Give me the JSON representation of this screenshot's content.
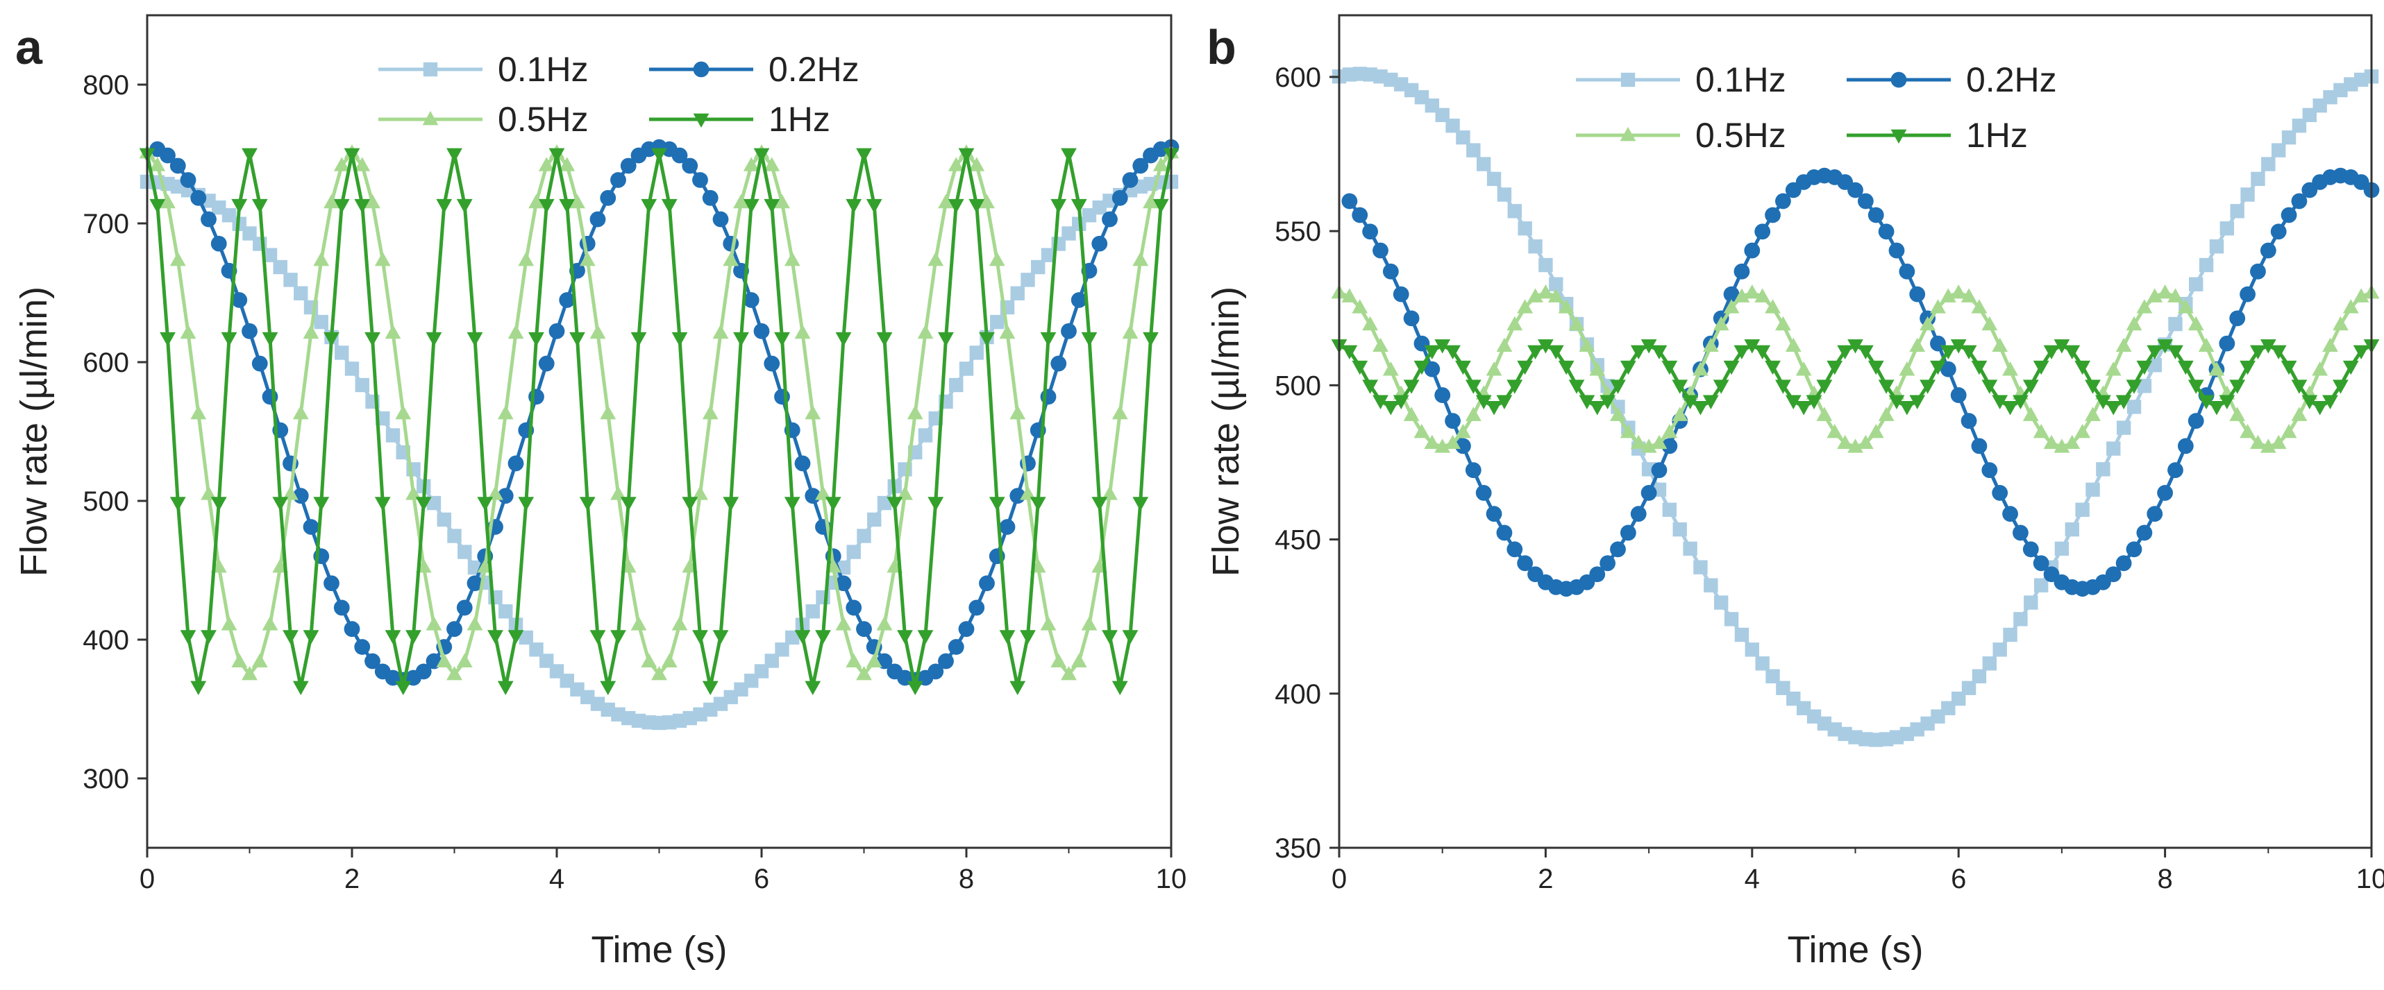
{
  "chart_data": [
    {
      "panel": "a",
      "type": "line",
      "xlabel": "Time (s)",
      "ylabel": "Flow rate (µl/min)",
      "xlim": [
        0,
        10
      ],
      "ylim": [
        250,
        850
      ],
      "xticks": [
        0,
        2,
        4,
        6,
        8,
        10
      ],
      "yticks": [
        300,
        400,
        500,
        600,
        700,
        800
      ],
      "grid": false,
      "legend_position": "top-center",
      "series": [
        {
          "name": "0.1Hz",
          "color": "#a9cce3",
          "marker": "square",
          "frequency_hz": 0.1,
          "amplitude": 195,
          "offset": 535,
          "phase_peak_s": 0.0,
          "t_start": 0.0,
          "t_end": 10.0
        },
        {
          "name": "0.2Hz",
          "color": "#1f6fb4",
          "marker": "circle",
          "frequency_hz": 0.2,
          "amplitude": 192,
          "offset": 563,
          "phase_peak_s": 0.0,
          "t_start": 0.1,
          "t_end": 10.0
        },
        {
          "name": "0.5Hz",
          "color": "#a6d98f",
          "marker": "triangle-up",
          "frequency_hz": 0.5,
          "amplitude": 188,
          "offset": 563,
          "phase_peak_s": 0.0,
          "t_start": 0.0,
          "t_end": 10.0
        },
        {
          "name": "1Hz",
          "color": "#33a02c",
          "marker": "triangle-down",
          "frequency_hz": 1.0,
          "amplitude": 192,
          "offset": 558,
          "phase_peak_s": 0.0,
          "t_start": 0.0,
          "t_end": 10.0
        }
      ]
    },
    {
      "panel": "b",
      "type": "line",
      "xlabel": "Time (s)",
      "ylabel": "Flow rate (µl/min)",
      "xlim": [
        0,
        10
      ],
      "ylim": [
        350,
        620
      ],
      "xticks": [
        0,
        2,
        4,
        6,
        8,
        10
      ],
      "yticks": [
        350,
        400,
        450,
        500,
        550,
        600
      ],
      "grid": false,
      "legend_position": "top-center",
      "series": [
        {
          "name": "0.1Hz",
          "color": "#a9cce3",
          "marker": "square",
          "frequency_hz": 0.1,
          "amplitude": 108,
          "offset": 493,
          "phase_peak_s": 0.2,
          "t_start": 0.0,
          "t_end": 10.0
        },
        {
          "name": "0.2Hz",
          "color": "#1f6fb4",
          "marker": "circle",
          "frequency_hz": 0.2,
          "amplitude": 67,
          "offset": 501,
          "phase_peak_s": -0.3,
          "t_start": 0.1,
          "t_end": 10.0
        },
        {
          "name": "0.5Hz",
          "color": "#a6d98f",
          "marker": "triangle-up",
          "frequency_hz": 0.5,
          "amplitude": 25,
          "offset": 505,
          "phase_peak_s": 0.0,
          "t_start": 0.0,
          "t_end": 10.0
        },
        {
          "name": "1Hz",
          "color": "#33a02c",
          "marker": "triangle-down",
          "frequency_hz": 1.0,
          "amplitude": 10,
          "offset": 503,
          "phase_peak_s": 0.0,
          "t_start": 0.0,
          "t_end": 10.0
        }
      ]
    }
  ]
}
